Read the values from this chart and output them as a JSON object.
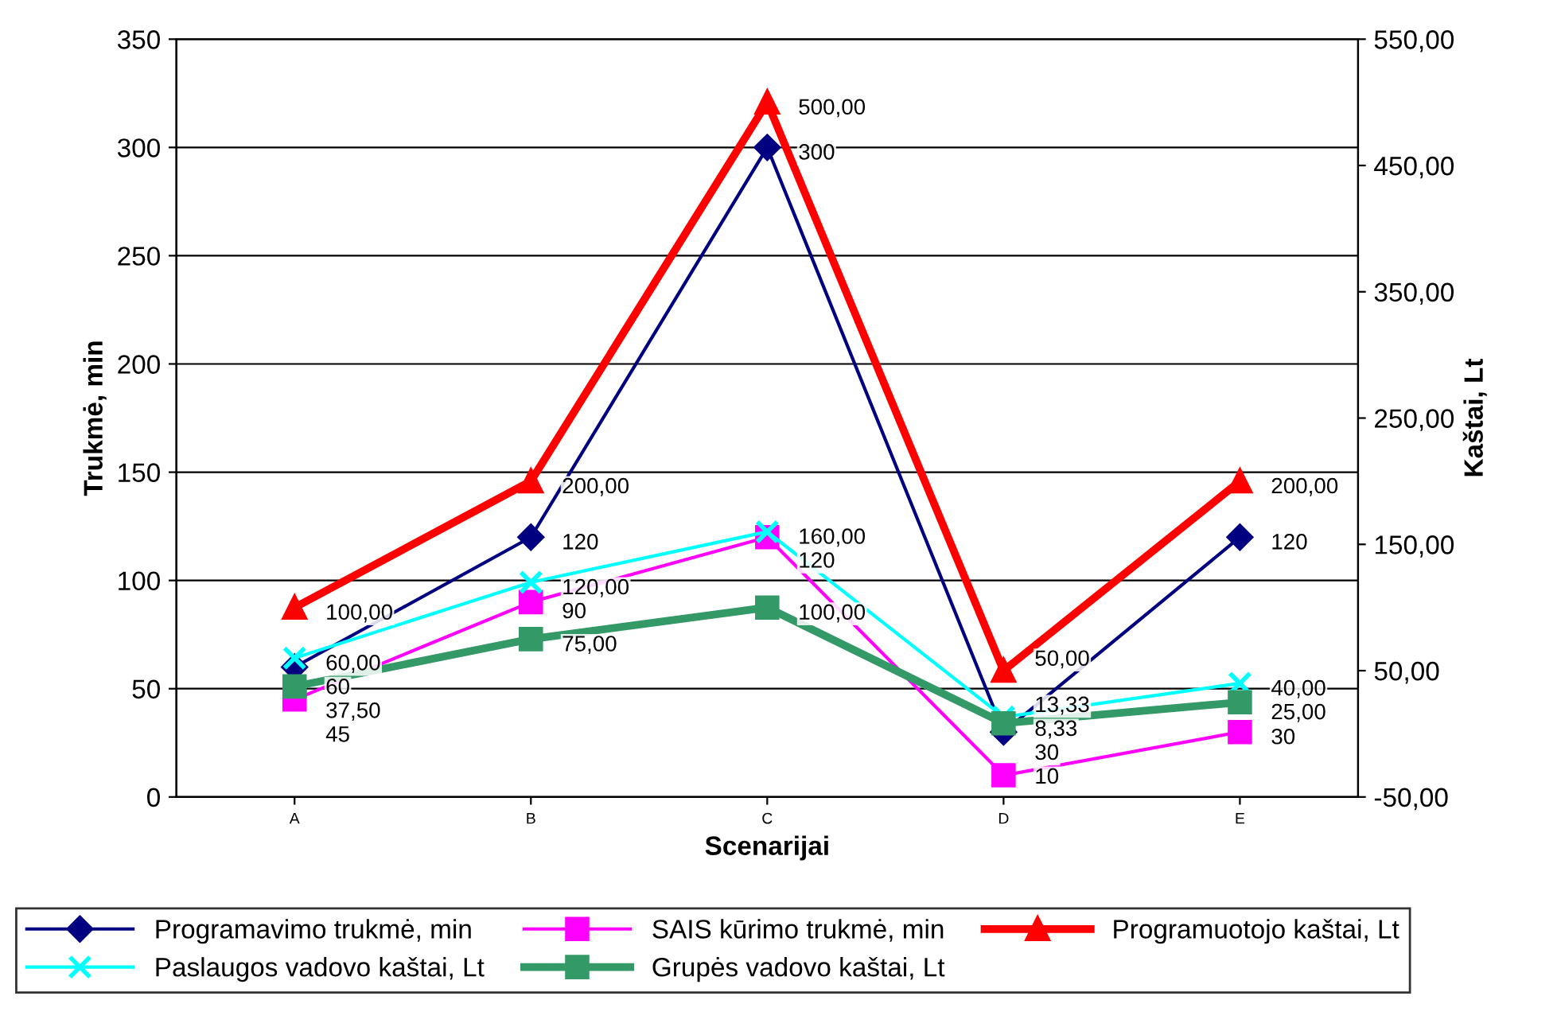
{
  "chart_data": {
    "type": "line",
    "xlabel": "Scenarijai",
    "ylabel": "Trukmė, min",
    "y2label": "Kaštai, Lt",
    "categories": [
      "A",
      "B",
      "C",
      "D",
      "E"
    ],
    "ylim": [
      0,
      350
    ],
    "yticks": [
      0,
      50,
      100,
      150,
      200,
      250,
      300,
      350
    ],
    "y2lim": [
      -50,
      550
    ],
    "y2ticks": [
      {
        "value": -50,
        "label": "-50,00"
      },
      {
        "value": 50,
        "label": "50,00"
      },
      {
        "value": 150,
        "label": "150,00"
      },
      {
        "value": 250,
        "label": "250,00"
      },
      {
        "value": 350,
        "label": "350,00"
      },
      {
        "value": 450,
        "label": "450,00"
      },
      {
        "value": 550,
        "label": "550,00"
      }
    ],
    "grid": "y",
    "legend": "bottom",
    "series": [
      {
        "name": "Programavimo trukmė, min",
        "color": "#000080",
        "marker": "diamond",
        "values": [
          60,
          120,
          300,
          30,
          120
        ],
        "value_labels": [
          "60",
          "120",
          "300",
          "30",
          "120"
        ]
      },
      {
        "name": "SAIS kūrimo trukmė, min",
        "color": "#ff00ff",
        "marker": "square",
        "values": [
          45,
          90,
          120,
          10,
          30
        ],
        "value_labels": [
          "45",
          "90",
          "120",
          "10",
          "30"
        ]
      },
      {
        "name": "Programuotojo kaštai, Lt",
        "color": "#ff0000",
        "marker": "triangle",
        "axis": "y2",
        "values": [
          100,
          200,
          500,
          50,
          200
        ],
        "value_labels": [
          "100,00",
          "200,00",
          "500,00",
          "50,00",
          "200,00"
        ]
      },
      {
        "name": "Paslaugos vadovo kaštai, Lt",
        "color": "#00ffff",
        "marker": "cross",
        "axis": "y2",
        "values": [
          60,
          120,
          160,
          13.33,
          40
        ],
        "value_labels": [
          "60,00",
          "120,00",
          "160,00",
          "13,33",
          "40,00"
        ]
      },
      {
        "name": "Grupės vadovo kaštai, Lt",
        "color": "#339966",
        "marker": "square",
        "axis": "y2",
        "values": [
          37.5,
          75,
          100,
          8.33,
          25
        ],
        "value_labels": [
          "37,50",
          "75,00",
          "100,00",
          "8,33",
          "25,00"
        ]
      }
    ]
  }
}
